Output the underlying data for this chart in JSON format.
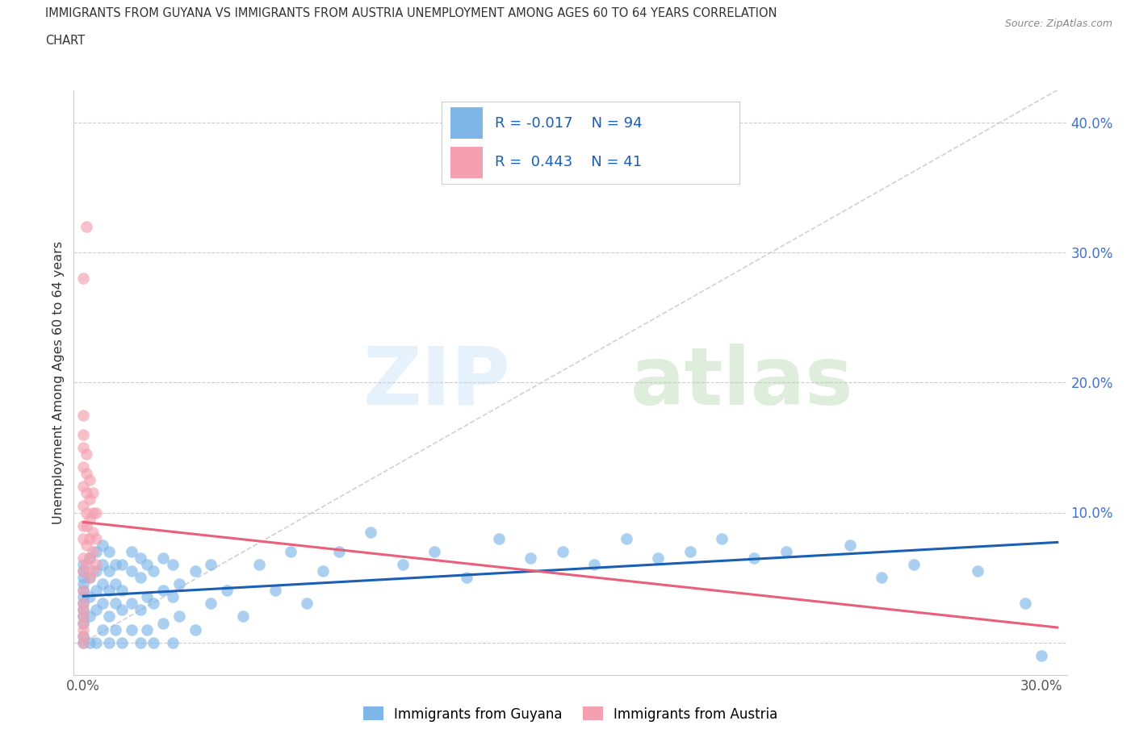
{
  "title_line1": "IMMIGRANTS FROM GUYANA VS IMMIGRANTS FROM AUSTRIA UNEMPLOYMENT AMONG AGES 60 TO 64 YEARS CORRELATION",
  "title_line2": "CHART",
  "source_text": "Source: ZipAtlas.com",
  "ylabel": "Unemployment Among Ages 60 to 64 years",
  "xlim": [
    -0.003,
    0.308
  ],
  "ylim": [
    -0.025,
    0.425
  ],
  "xticks": [
    0.0,
    0.05,
    0.1,
    0.15,
    0.2,
    0.25,
    0.3
  ],
  "yticks": [
    0.0,
    0.1,
    0.2,
    0.3,
    0.4
  ],
  "guyana_color": "#7eb6e8",
  "austria_color": "#f4a0b0",
  "guyana_line_color": "#1a5fb4",
  "austria_line_color": "#e8607a",
  "background_color": "#ffffff",
  "guyana_R": -0.017,
  "guyana_N": 94,
  "austria_R": 0.443,
  "austria_N": 41,
  "guyana_scatter": [
    [
      0.0,
      0.0
    ],
    [
      0.0,
      0.005
    ],
    [
      0.0,
      0.015
    ],
    [
      0.0,
      0.02
    ],
    [
      0.0,
      0.025
    ],
    [
      0.0,
      0.03
    ],
    [
      0.0,
      0.035
    ],
    [
      0.0,
      0.04
    ],
    [
      0.0,
      0.045
    ],
    [
      0.0,
      0.05
    ],
    [
      0.0,
      0.055
    ],
    [
      0.0,
      0.06
    ],
    [
      0.002,
      0.0
    ],
    [
      0.002,
      0.02
    ],
    [
      0.002,
      0.035
    ],
    [
      0.002,
      0.05
    ],
    [
      0.002,
      0.065
    ],
    [
      0.004,
      0.0
    ],
    [
      0.004,
      0.025
    ],
    [
      0.004,
      0.04
    ],
    [
      0.004,
      0.055
    ],
    [
      0.004,
      0.07
    ],
    [
      0.006,
      0.01
    ],
    [
      0.006,
      0.03
    ],
    [
      0.006,
      0.045
    ],
    [
      0.006,
      0.06
    ],
    [
      0.006,
      0.075
    ],
    [
      0.008,
      0.0
    ],
    [
      0.008,
      0.02
    ],
    [
      0.008,
      0.04
    ],
    [
      0.008,
      0.055
    ],
    [
      0.008,
      0.07
    ],
    [
      0.01,
      0.01
    ],
    [
      0.01,
      0.03
    ],
    [
      0.01,
      0.045
    ],
    [
      0.01,
      0.06
    ],
    [
      0.012,
      0.0
    ],
    [
      0.012,
      0.025
    ],
    [
      0.012,
      0.04
    ],
    [
      0.012,
      0.06
    ],
    [
      0.015,
      0.01
    ],
    [
      0.015,
      0.03
    ],
    [
      0.015,
      0.055
    ],
    [
      0.015,
      0.07
    ],
    [
      0.018,
      0.0
    ],
    [
      0.018,
      0.025
    ],
    [
      0.018,
      0.05
    ],
    [
      0.018,
      0.065
    ],
    [
      0.02,
      0.01
    ],
    [
      0.02,
      0.035
    ],
    [
      0.02,
      0.06
    ],
    [
      0.022,
      0.0
    ],
    [
      0.022,
      0.03
    ],
    [
      0.022,
      0.055
    ],
    [
      0.025,
      0.015
    ],
    [
      0.025,
      0.04
    ],
    [
      0.025,
      0.065
    ],
    [
      0.028,
      0.0
    ],
    [
      0.028,
      0.035
    ],
    [
      0.028,
      0.06
    ],
    [
      0.03,
      0.02
    ],
    [
      0.03,
      0.045
    ],
    [
      0.035,
      0.01
    ],
    [
      0.035,
      0.055
    ],
    [
      0.04,
      0.03
    ],
    [
      0.04,
      0.06
    ],
    [
      0.045,
      0.04
    ],
    [
      0.05,
      0.02
    ],
    [
      0.055,
      0.06
    ],
    [
      0.06,
      0.04
    ],
    [
      0.065,
      0.07
    ],
    [
      0.07,
      0.03
    ],
    [
      0.075,
      0.055
    ],
    [
      0.08,
      0.07
    ],
    [
      0.09,
      0.085
    ],
    [
      0.1,
      0.06
    ],
    [
      0.11,
      0.07
    ],
    [
      0.12,
      0.05
    ],
    [
      0.13,
      0.08
    ],
    [
      0.14,
      0.065
    ],
    [
      0.15,
      0.07
    ],
    [
      0.16,
      0.06
    ],
    [
      0.17,
      0.08
    ],
    [
      0.18,
      0.065
    ],
    [
      0.19,
      0.07
    ],
    [
      0.2,
      0.08
    ],
    [
      0.21,
      0.065
    ],
    [
      0.22,
      0.07
    ],
    [
      0.24,
      0.075
    ],
    [
      0.25,
      0.05
    ],
    [
      0.26,
      0.06
    ],
    [
      0.28,
      0.055
    ],
    [
      0.295,
      0.03
    ],
    [
      0.3,
      -0.01
    ]
  ],
  "austria_scatter": [
    [
      0.0,
      0.0
    ],
    [
      0.0,
      0.005
    ],
    [
      0.0,
      0.01
    ],
    [
      0.0,
      0.015
    ],
    [
      0.0,
      0.02
    ],
    [
      0.0,
      0.025
    ],
    [
      0.0,
      0.03
    ],
    [
      0.0,
      0.04
    ],
    [
      0.0,
      0.055
    ],
    [
      0.0,
      0.065
    ],
    [
      0.0,
      0.08
    ],
    [
      0.0,
      0.09
    ],
    [
      0.0,
      0.105
    ],
    [
      0.0,
      0.12
    ],
    [
      0.0,
      0.135
    ],
    [
      0.0,
      0.15
    ],
    [
      0.0,
      0.16
    ],
    [
      0.0,
      0.175
    ],
    [
      0.001,
      0.06
    ],
    [
      0.001,
      0.075
    ],
    [
      0.001,
      0.09
    ],
    [
      0.001,
      0.1
    ],
    [
      0.001,
      0.115
    ],
    [
      0.001,
      0.13
    ],
    [
      0.001,
      0.145
    ],
    [
      0.002,
      0.05
    ],
    [
      0.002,
      0.065
    ],
    [
      0.002,
      0.08
    ],
    [
      0.002,
      0.095
    ],
    [
      0.002,
      0.11
    ],
    [
      0.002,
      0.125
    ],
    [
      0.003,
      0.055
    ],
    [
      0.003,
      0.07
    ],
    [
      0.003,
      0.085
    ],
    [
      0.003,
      0.1
    ],
    [
      0.003,
      0.115
    ],
    [
      0.004,
      0.06
    ],
    [
      0.004,
      0.08
    ],
    [
      0.004,
      0.1
    ],
    [
      0.0,
      0.28
    ],
    [
      0.001,
      0.32
    ]
  ]
}
